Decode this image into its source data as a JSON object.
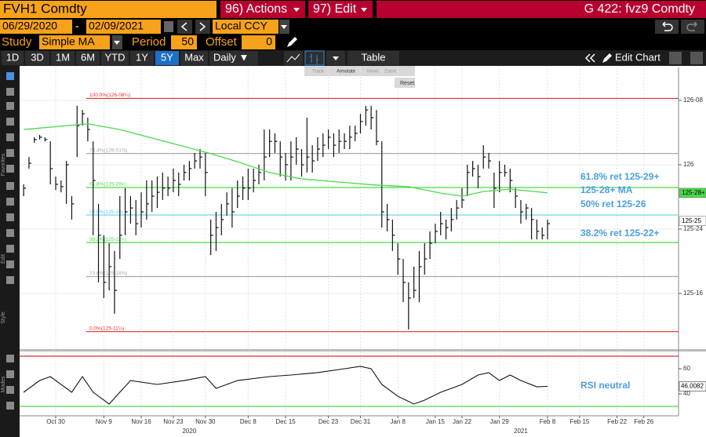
{
  "header": {
    "security": "FVH1 Comdty",
    "actions": "96) Actions",
    "edit": "97) Edit",
    "right_title": "G 422: fvz9 Comdty"
  },
  "range": {
    "start": "06/29/2020",
    "separator": "-",
    "end": "02/09/2021",
    "currency": "Local CCY"
  },
  "study": {
    "label": "Study",
    "name": "Simple MA",
    "period_label": "Period",
    "period": "50",
    "offset_label": "Offset",
    "offset": "0"
  },
  "toolbar": {
    "periods": [
      "1D",
      "3D",
      "1M",
      "6M",
      "YTD",
      "1Y",
      "5Y",
      "Max"
    ],
    "selected": 6,
    "frequency": "Daily ▼",
    "table": "Table",
    "edit_chart": "Edit Chart"
  },
  "tools": {
    "items": [
      "Track",
      "Annotate",
      "News",
      "Zoom"
    ],
    "reset": "Reset"
  },
  "side_labels": [
    "Favorites",
    "Edit",
    "Style",
    "Modes"
  ],
  "chart_data": [
    {
      "type": "ohlc",
      "xlim": [
        -0.75,
        122.5
      ],
      "ylim": [
        125.2835,
        126.372
      ],
      "yticks": [
        {
          "value": 125.5,
          "label": "125-16"
        },
        {
          "value": 125.75,
          "label": "125-24"
        },
        {
          "value": 126,
          "label": "126"
        },
        {
          "value": 126.25,
          "label": "126-08"
        }
      ],
      "xticks": [
        {
          "value": 6,
          "label": "Oct 30"
        },
        {
          "value": 15,
          "label": "Nov 9"
        },
        {
          "value": 22,
          "label": "Nov 16"
        },
        {
          "value": 28,
          "label": "Nov 23"
        },
        {
          "value": 34,
          "label": "Nov 30"
        },
        {
          "value": 42,
          "label": "Dec 8"
        },
        {
          "value": 49,
          "label": "Dec 15"
        },
        {
          "value": 57,
          "label": "Dec 23"
        },
        {
          "value": 63,
          "label": "Dec 31"
        },
        {
          "value": 70,
          "label": "Jan 8"
        },
        {
          "value": 77,
          "label": "Jan 15"
        },
        {
          "value": 82,
          "label": "Jan 22"
        },
        {
          "value": 89,
          "label": "Jan 29"
        },
        {
          "value": 98,
          "label": "Feb 8"
        },
        {
          "value": 104,
          "label": "Feb 15"
        },
        {
          "value": 111,
          "label": "Feb 22"
        },
        {
          "value": 116,
          "label": "Feb 26"
        }
      ],
      "year_labels": [
        {
          "value": 31,
          "label": "2020"
        },
        {
          "value": 93,
          "label": "2021"
        }
      ],
      "grid": true,
      "color": "#111111",
      "ohlc": [
        [
          125.924,
          125.878,
          125.909
        ],
        [
          126.03,
          125.985,
          126.006
        ],
        [
          126.107,
          126.085,
          126.098
        ],
        [
          126.116,
          126.098,
          126.107
        ],
        [
          126.107,
          126.091,
          126.098
        ],
        [
          126.091,
          125.924,
          125.985
        ],
        [
          125.954,
          125.902,
          125.924
        ],
        [
          125.939,
          125.893,
          125.915
        ],
        [
          126.015,
          125.848,
          126.0
        ],
        [
          125.878,
          125.787,
          125.848
        ],
        [
          126.229,
          126.03,
          126.152
        ],
        [
          126.213,
          126.152,
          126.198
        ],
        [
          126.183,
          126.091,
          126.137
        ],
        [
          126.091,
          125.726,
          125.939
        ],
        [
          125.848,
          125.543,
          125.726
        ],
        [
          125.726,
          125.482,
          125.543
        ],
        [
          125.695,
          125.512,
          125.604
        ],
        [
          125.665,
          125.421,
          125.512
        ],
        [
          125.878,
          125.634,
          125.726
        ],
        [
          125.909,
          125.726,
          125.817
        ],
        [
          125.878,
          125.771,
          125.832
        ],
        [
          125.863,
          125.726,
          125.771
        ],
        [
          125.893,
          125.756,
          125.817
        ],
        [
          125.939,
          125.787,
          125.848
        ],
        [
          125.939,
          125.817,
          125.878
        ],
        [
          125.954,
          125.832,
          125.893
        ],
        [
          125.97,
          125.863,
          125.909
        ],
        [
          125.954,
          125.878,
          125.909
        ],
        [
          125.985,
          125.893,
          125.939
        ],
        [
          125.97,
          125.878,
          125.924
        ],
        [
          126.0,
          125.939,
          125.97
        ],
        [
          126.015,
          125.939,
          125.985
        ],
        [
          126.046,
          125.985,
          126.015
        ],
        [
          126.061,
          125.985,
          126.03
        ],
        [
          126.046,
          125.878,
          125.97
        ],
        [
          125.787,
          125.649,
          125.726
        ],
        [
          125.817,
          125.665,
          125.756
        ],
        [
          125.848,
          125.726,
          125.787
        ],
        [
          125.893,
          125.802,
          125.848
        ],
        [
          125.909,
          125.756,
          125.817
        ],
        [
          125.939,
          125.832,
          125.878
        ],
        [
          125.954,
          125.863,
          125.909
        ],
        [
          125.985,
          125.863,
          125.909
        ],
        [
          125.985,
          125.893,
          125.939
        ],
        [
          126.0,
          125.924,
          125.97
        ],
        [
          126.137,
          125.939,
          126.03
        ],
        [
          126.137,
          126.03,
          126.091
        ],
        [
          126.122,
          126.046,
          126.091
        ],
        [
          126.091,
          125.954,
          126.03
        ],
        [
          126.046,
          125.939,
          126.0
        ],
        [
          126.091,
          125.939,
          126.03
        ],
        [
          126.107,
          126.0,
          126.061
        ],
        [
          126.061,
          125.954,
          126.0
        ],
        [
          126.183,
          125.97,
          126.03
        ],
        [
          126.076,
          125.97,
          126.015
        ],
        [
          126.107,
          126.015,
          126.061
        ],
        [
          126.122,
          126.03,
          126.076
        ],
        [
          126.137,
          126.061,
          126.107
        ],
        [
          126.122,
          126.03,
          126.076
        ],
        [
          126.137,
          126.046,
          126.091
        ],
        [
          126.122,
          126.061,
          126.091
        ],
        [
          126.152,
          126.061,
          126.107
        ],
        [
          126.152,
          126.091,
          126.122
        ],
        [
          126.198,
          126.122,
          126.168
        ],
        [
          126.229,
          126.152,
          126.213
        ],
        [
          126.229,
          126.137,
          126.183
        ],
        [
          126.213,
          126.076,
          126.091
        ],
        [
          126.091,
          125.756,
          125.817
        ],
        [
          125.848,
          125.741,
          125.787
        ],
        [
          125.787,
          125.665,
          125.726
        ],
        [
          125.695,
          125.573,
          125.634
        ],
        [
          125.634,
          125.466,
          125.543
        ],
        [
          125.543,
          125.36,
          125.482
        ],
        [
          125.604,
          125.482,
          125.512
        ],
        [
          125.665,
          125.466,
          125.604
        ],
        [
          125.695,
          125.573,
          125.634
        ],
        [
          125.741,
          125.634,
          125.695
        ],
        [
          125.771,
          125.695,
          125.741
        ],
        [
          125.817,
          125.726,
          125.771
        ],
        [
          125.787,
          125.71,
          125.756
        ],
        [
          125.832,
          125.741,
          125.787
        ],
        [
          125.863,
          125.787,
          125.832
        ],
        [
          125.909,
          125.832,
          125.863
        ],
        [
          126.0,
          125.878,
          125.97
        ],
        [
          126.015,
          125.954,
          125.985
        ],
        [
          126.0,
          125.909,
          125.954
        ],
        [
          126.076,
          125.985,
          126.03
        ],
        [
          126.046,
          125.985,
          126.015
        ],
        [
          125.97,
          125.832,
          125.909
        ],
        [
          126.015,
          125.893,
          125.97
        ],
        [
          126.0,
          125.954,
          125.97
        ],
        [
          125.985,
          125.893,
          125.939
        ],
        [
          125.909,
          125.832,
          125.878
        ],
        [
          125.863,
          125.771,
          125.817
        ],
        [
          125.848,
          125.787,
          125.832
        ],
        [
          125.832,
          125.71,
          125.787
        ],
        [
          125.787,
          125.71,
          125.741
        ],
        [
          125.756,
          125.71,
          125.726
        ],
        [
          125.787,
          125.71,
          125.771
        ]
      ],
      "ma": {
        "color": "#4cd84c",
        "x": [
          0,
          12,
          18,
          28,
          34,
          40,
          46,
          52,
          59,
          66,
          72,
          78,
          82,
          86,
          91,
          98
        ],
        "values": [
          126.137,
          126.159,
          126.137,
          126.082,
          126.049,
          126.012,
          125.97,
          125.945,
          125.933,
          125.921,
          125.915,
          125.89,
          125.878,
          125.896,
          125.905,
          125.891
        ]
      },
      "fib_levels": [
        {
          "label": "100.0%(126-08¼)",
          "value": 126.2578,
          "color": "#e03030"
        },
        {
          "label": "76.4%(126-01⅜)",
          "value": 126.0439,
          "color": "#aaaaaa"
        },
        {
          "label": "61.8%(125-29+)",
          "value": 125.9116,
          "color": "#4cd84c"
        },
        {
          "label": "50.0%(125-26)",
          "value": 125.8047,
          "color": "#5fd3e8"
        },
        {
          "label": "38.2%(125-22+)",
          "value": 125.6978,
          "color": "#4cd84c"
        },
        {
          "label": "23.6%(125-18⅜)",
          "value": 125.5655,
          "color": "#aaaaaa"
        },
        {
          "label": "0.0%(125-11¼)",
          "value": 125.3516,
          "color": "#e03030"
        }
      ],
      "annotations": [
        "61.8% ret 125-29+",
        "125-28+ MA",
        "50% ret 125-26",
        "38.2% ret 125-22+"
      ],
      "price_tags": [
        {
          "label": "125-28+",
          "value": 125.8906,
          "color": "#4cd84c"
        },
        {
          "label": "125-25",
          "value": 125.7813,
          "color": "#ffffff"
        }
      ]
    },
    {
      "type": "line",
      "xlim": [
        -0.75,
        122.5
      ],
      "ylim": [
        22.5,
        73.75
      ],
      "yticks": [
        40,
        60
      ],
      "color": "#111111",
      "bands": [
        {
          "value": 70,
          "color": "#e03030"
        },
        {
          "value": 30,
          "color": "#4cd84c"
        }
      ],
      "x": [
        0,
        3,
        5,
        9,
        11,
        13,
        16,
        18,
        20,
        25,
        30,
        34,
        36,
        40,
        46,
        50,
        55,
        60,
        63,
        65,
        67,
        70,
        73,
        75,
        78,
        82,
        85,
        87,
        89,
        91,
        93,
        96,
        98
      ],
      "values": [
        41.25,
        50.6,
        53.75,
        41.3,
        53.75,
        41.3,
        31.9,
        41.3,
        50.6,
        47.5,
        50.6,
        53.75,
        44.4,
        50.6,
        53.75,
        55,
        56.9,
        60,
        61.9,
        60,
        47.5,
        38.1,
        31.9,
        35,
        41.25,
        47.5,
        55,
        56.9,
        50.6,
        55,
        50.6,
        45.6,
        46.0082
      ],
      "annotation": "RSI neutral"
    }
  ]
}
